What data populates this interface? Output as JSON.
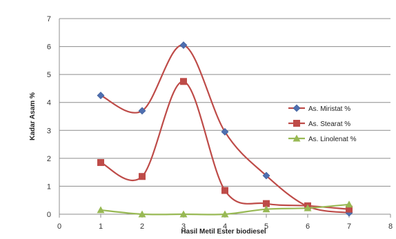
{
  "chart_data": {
    "type": "line",
    "xlabel": "Hasil Metil Ester  biodiesel",
    "ylabel": "Kadar Asam %",
    "xlim": [
      0,
      8
    ],
    "ylim": [
      0,
      7
    ],
    "xticks": [
      "0",
      "1",
      "2",
      "3",
      "4",
      "5",
      "6",
      "7",
      "8"
    ],
    "yticks": [
      "0",
      "1",
      "2",
      "3",
      "4",
      "5",
      "6",
      "7"
    ],
    "grid": "horizontal",
    "smooth": true,
    "legend_position": "right",
    "x": [
      1,
      2,
      3,
      4,
      5,
      6,
      7
    ],
    "series": [
      {
        "name": "As. Miristat %",
        "color": "#be4b48",
        "marker": "diamond",
        "marker_color": "#4f6fb0",
        "values": [
          4.25,
          3.7,
          6.05,
          2.95,
          1.38,
          0.28,
          0.05
        ]
      },
      {
        "name": "As. Stearat %",
        "color": "#be4b48",
        "marker": "square",
        "marker_color": "#be4b48",
        "values": [
          1.85,
          1.35,
          4.75,
          0.85,
          0.38,
          0.3,
          0.18
        ]
      },
      {
        "name": "As. Linolenat %",
        "color": "#98b954",
        "marker": "triangle",
        "marker_color": "#98b954",
        "values": [
          0.15,
          0.0,
          0.0,
          0.0,
          0.18,
          0.22,
          0.35
        ]
      }
    ]
  }
}
